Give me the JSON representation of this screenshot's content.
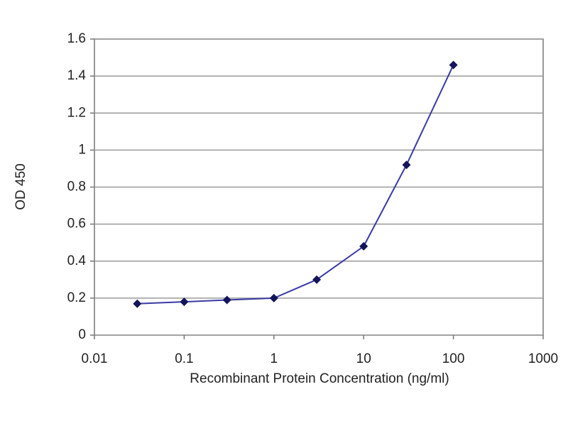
{
  "chart_data": {
    "type": "line",
    "x_label": "Recombinant Protein Concentration (ng/ml)",
    "y_label": "OD 450",
    "x": [
      0.03,
      0.1,
      0.3,
      1,
      3,
      10,
      30,
      100
    ],
    "values": [
      0.17,
      0.18,
      0.19,
      0.2,
      0.3,
      0.48,
      0.92,
      1.46
    ],
    "color": "#3a3aa8",
    "marker_color": "#14145a",
    "xlim": [
      0.01,
      1000
    ],
    "xticks": [
      0.01,
      0.1,
      1,
      10,
      100,
      1000
    ],
    "x_log": true,
    "ylim": [
      0,
      1.6
    ],
    "yticks": [
      0,
      0.2,
      0.4,
      0.6,
      0.8,
      1,
      1.2,
      1.4,
      1.6
    ],
    "grid": true
  }
}
